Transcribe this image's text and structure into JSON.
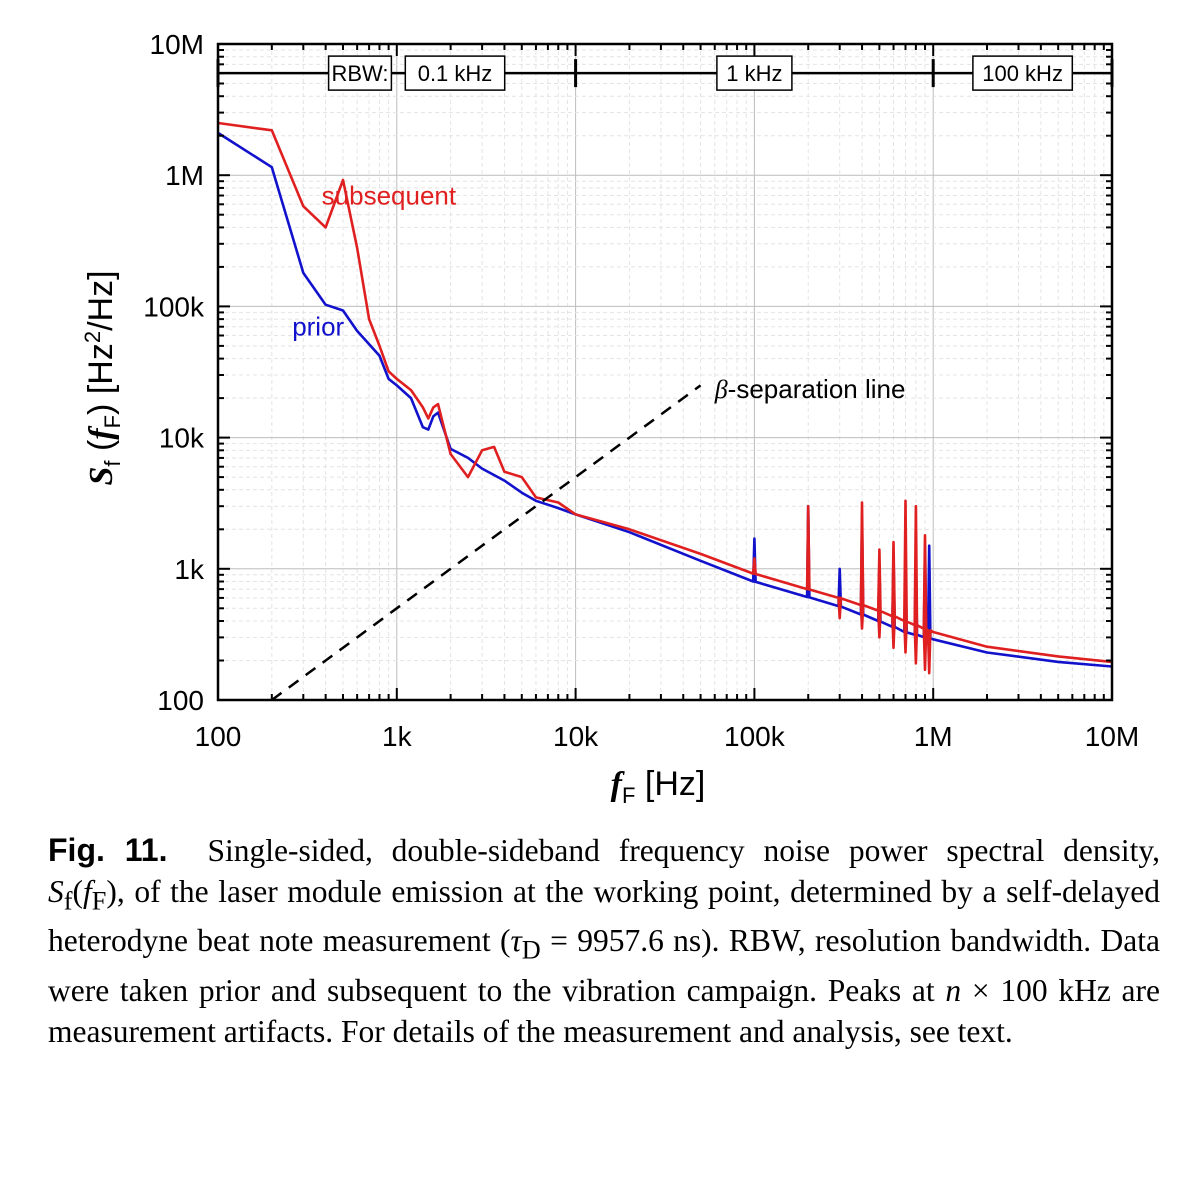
{
  "chart_data": {
    "type": "line",
    "x_scale": "log",
    "y_scale": "log",
    "xlim": [
      100,
      10000000
    ],
    "ylim": [
      100,
      10000000
    ],
    "x_tick_labels": [
      "100",
      "1k",
      "10k",
      "100k",
      "1M",
      "10M"
    ],
    "x_tick_values": [
      100,
      1000,
      10000,
      100000,
      1000000,
      10000000
    ],
    "y_tick_labels": [
      "100",
      "1k",
      "10k",
      "100k",
      "1M",
      "10M"
    ],
    "y_tick_values": [
      100,
      1000,
      10000,
      100000,
      1000000,
      10000000
    ],
    "xlabel": {
      "symbol": "f",
      "subscript": "F",
      "unit": " [Hz]"
    },
    "ylabel": {
      "symbol": "S",
      "sub1": "f",
      "mid": " (",
      "symbol2": "f",
      "sub2": "F",
      "unit": ") [Hz",
      "sup": "2",
      "tail": "/Hz]"
    },
    "grid": true,
    "rbw": {
      "prefix": "RBW:",
      "segments": [
        {
          "label": "0.1 kHz",
          "from": 100,
          "to": 10000
        },
        {
          "label": "1 kHz",
          "from": 10000,
          "to": 1000000
        },
        {
          "label": "100 kHz",
          "from": 1000000,
          "to": 10000000
        }
      ],
      "level": 6000000
    },
    "series": [
      {
        "name": "prior",
        "color": "#1212cc",
        "points": [
          [
            100,
            2100000
          ],
          [
            200,
            1150000
          ],
          [
            300,
            180000
          ],
          [
            400,
            103000
          ],
          [
            500,
            93000
          ],
          [
            600,
            65000
          ],
          [
            800,
            42000
          ],
          [
            900,
            28000
          ],
          [
            1000,
            25000
          ],
          [
            1200,
            20000
          ],
          [
            1400,
            12000
          ],
          [
            1500,
            11500
          ],
          [
            1600,
            14500
          ],
          [
            1700,
            15500
          ],
          [
            2000,
            8200
          ],
          [
            2500,
            7000
          ],
          [
            3000,
            5800
          ],
          [
            4000,
            4700
          ],
          [
            5000,
            3800
          ],
          [
            6000,
            3300
          ],
          [
            8000,
            2900
          ],
          [
            10000,
            2600
          ],
          [
            20000,
            1900
          ],
          [
            50000,
            1150
          ],
          [
            100000,
            800
          ],
          [
            200000,
            610
          ],
          [
            300000,
            520
          ],
          [
            500000,
            400
          ],
          [
            700000,
            330
          ],
          [
            1000000,
            290
          ],
          [
            2000000,
            230
          ],
          [
            5000000,
            195
          ],
          [
            10000000,
            180
          ]
        ],
        "spikes": [
          [
            100000,
            1700
          ],
          [
            200000,
            3000
          ],
          [
            300000,
            1000
          ],
          [
            400000,
            2400
          ],
          [
            500000,
            1100
          ],
          [
            600000,
            1300
          ],
          [
            700000,
            1000
          ],
          [
            800000,
            1300
          ],
          [
            900000,
            1400
          ],
          [
            950000,
            1500
          ]
        ]
      },
      {
        "name": "subsequent",
        "color": "#e02020",
        "points": [
          [
            100,
            2500000
          ],
          [
            200,
            2200000
          ],
          [
            300,
            580000
          ],
          [
            400,
            400000
          ],
          [
            500,
            920000
          ],
          [
            600,
            280000
          ],
          [
            700,
            80000
          ],
          [
            800,
            50000
          ],
          [
            900,
            32000
          ],
          [
            1000,
            28000
          ],
          [
            1200,
            23000
          ],
          [
            1400,
            17000
          ],
          [
            1500,
            14000
          ],
          [
            1600,
            17000
          ],
          [
            1700,
            18000
          ],
          [
            2000,
            7500
          ],
          [
            2500,
            5000
          ],
          [
            3000,
            8000
          ],
          [
            3500,
            8500
          ],
          [
            4000,
            5500
          ],
          [
            5000,
            5000
          ],
          [
            6000,
            3500
          ],
          [
            8000,
            3200
          ],
          [
            10000,
            2600
          ],
          [
            20000,
            2000
          ],
          [
            50000,
            1300
          ],
          [
            100000,
            920
          ],
          [
            200000,
            700
          ],
          [
            300000,
            600
          ],
          [
            500000,
            480
          ],
          [
            700000,
            400
          ],
          [
            1000000,
            330
          ],
          [
            2000000,
            255
          ],
          [
            5000000,
            215
          ],
          [
            10000000,
            195
          ]
        ],
        "spikes": [
          [
            100000,
            1200
          ],
          [
            200000,
            3000
          ],
          [
            400000,
            3200
          ],
          [
            500000,
            1400
          ],
          [
            600000,
            1600
          ],
          [
            700000,
            3300
          ],
          [
            800000,
            3000
          ],
          [
            900000,
            1800
          ]
        ],
        "dips": [
          [
            300000,
            420
          ],
          [
            400000,
            350
          ],
          [
            500000,
            300
          ],
          [
            600000,
            250
          ],
          [
            700000,
            230
          ],
          [
            800000,
            190
          ],
          [
            900000,
            170
          ],
          [
            950000,
            160
          ]
        ]
      }
    ],
    "annotations": [
      {
        "text": "subsequent",
        "color": "#e02020",
        "at_x": 380,
        "at_y": 600000
      },
      {
        "text": "prior",
        "color": "#1212cc",
        "at_x": 260,
        "at_y": 60000
      },
      {
        "symbol": "β",
        "text": "-separation line",
        "color": "#000000",
        "at_x": 60000,
        "at_y": 20000
      }
    ],
    "reference_line": {
      "name": "β-separation line",
      "style": "dashed",
      "color": "#000000",
      "from": [
        200,
        100
      ],
      "to": [
        50000,
        25000
      ]
    }
  },
  "caption": {
    "label": "Fig. 11.",
    "p1": "Single-sided, double-sideband frequency noise power spectral density, ",
    "sym_S": "S",
    "sym_f_sub": "f",
    "sym_paren_open": "(",
    "sym_f": "f",
    "sym_F_sub": "F",
    "sym_paren_close": ")",
    "p2": ", of the laser module emission at the working point, determined by a self-delayed heterodyne beat note measurement (",
    "tau": "τ",
    "tau_sub": "D",
    "p3": " = 9957.6 ns). RBW, resolution bandwidth. Data were taken prior and subsequent to the vibration campaign. Peaks at ",
    "n": "n",
    "p4": " × 100 kHz are measurement artifacts. For details of the measurement and analysis, see text."
  }
}
